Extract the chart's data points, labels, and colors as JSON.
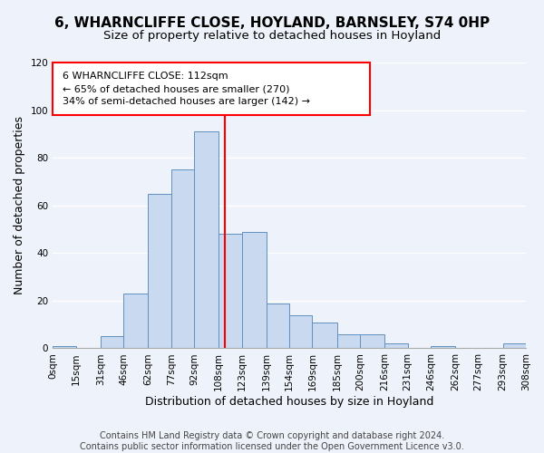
{
  "title": "6, WHARNCLIFFE CLOSE, HOYLAND, BARNSLEY, S74 0HP",
  "subtitle": "Size of property relative to detached houses in Hoyland",
  "xlabel": "Distribution of detached houses by size in Hoyland",
  "ylabel": "Number of detached properties",
  "bar_edges": [
    0,
    15,
    31,
    46,
    62,
    77,
    92,
    108,
    123,
    139,
    154,
    169,
    185,
    200,
    216,
    231,
    246,
    262,
    277,
    293,
    308
  ],
  "bar_heights": [
    1,
    0,
    5,
    23,
    65,
    75,
    91,
    48,
    49,
    19,
    14,
    11,
    6,
    6,
    2,
    0,
    1,
    0,
    0,
    2
  ],
  "bar_color": "#c9d9f0",
  "bar_edge_color": "#6090c0",
  "tick_labels": [
    "0sqm",
    "15sqm",
    "31sqm",
    "46sqm",
    "62sqm",
    "77sqm",
    "92sqm",
    "108sqm",
    "123sqm",
    "139sqm",
    "154sqm",
    "169sqm",
    "185sqm",
    "200sqm",
    "216sqm",
    "231sqm",
    "246sqm",
    "262sqm",
    "277sqm",
    "293sqm",
    "308sqm"
  ],
  "ylim": [
    0,
    120
  ],
  "yticks": [
    0,
    20,
    40,
    60,
    80,
    100,
    120
  ],
  "property_line_x": 112,
  "ann_line1": "6 WHARNCLIFFE CLOSE: 112sqm",
  "ann_line2": "← 65% of detached houses are smaller (270)",
  "ann_line3": "34% of semi-detached houses are larger (142) →",
  "footer_line1": "Contains HM Land Registry data © Crown copyright and database right 2024.",
  "footer_line2": "Contains public sector information licensed under the Open Government Licence v3.0.",
  "background_color": "#eef2fa",
  "grid_color": "#ffffff",
  "title_fontsize": 11,
  "subtitle_fontsize": 9.5,
  "label_fontsize": 9,
  "tick_fontsize": 7.5,
  "ann_fontsize": 8,
  "footer_fontsize": 7
}
